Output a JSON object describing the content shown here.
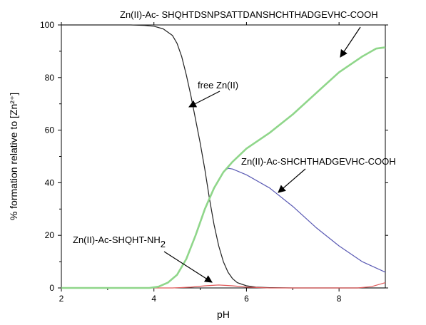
{
  "chart_data": {
    "type": "line",
    "xlabel": "pH",
    "ylabel": "% formation relative to [Zn²⁺]",
    "xlim": [
      2,
      9
    ],
    "ylim": [
      0,
      100
    ],
    "xticks": [
      "2",
      "4",
      "6",
      "8"
    ],
    "yticks": [
      "0",
      "20",
      "40",
      "60",
      "80",
      "100"
    ],
    "grid": false,
    "series": [
      {
        "name": "free Zn(II)",
        "color": "#222222",
        "points": [
          [
            2.0,
            100
          ],
          [
            3.5,
            100
          ],
          [
            3.8,
            99.8
          ],
          [
            4.0,
            99.5
          ],
          [
            4.2,
            98.5
          ],
          [
            4.4,
            96
          ],
          [
            4.5,
            93
          ],
          [
            4.6,
            88
          ],
          [
            4.7,
            81
          ],
          [
            4.8,
            73
          ],
          [
            4.9,
            64
          ],
          [
            5.0,
            55
          ],
          [
            5.1,
            45
          ],
          [
            5.2,
            34
          ],
          [
            5.3,
            24
          ],
          [
            5.4,
            16
          ],
          [
            5.5,
            10
          ],
          [
            5.6,
            6
          ],
          [
            5.7,
            3.5
          ],
          [
            5.8,
            2
          ],
          [
            6.0,
            0.8
          ],
          [
            6.2,
            0.3
          ],
          [
            6.5,
            0.1
          ],
          [
            7.0,
            0
          ],
          [
            9.0,
            0
          ]
        ]
      },
      {
        "name": "Zn(II)-Ac- SHQHTDSNPSATTDANSHCHTHADGEVHC-COOH",
        "color": "#8fd68a",
        "points": [
          [
            2.0,
            0
          ],
          [
            3.9,
            0
          ],
          [
            4.1,
            0.5
          ],
          [
            4.3,
            2
          ],
          [
            4.5,
            5
          ],
          [
            4.7,
            11
          ],
          [
            4.9,
            20
          ],
          [
            5.1,
            30
          ],
          [
            5.3,
            38
          ],
          [
            5.5,
            44
          ],
          [
            5.7,
            48
          ],
          [
            6.0,
            53
          ],
          [
            6.5,
            59
          ],
          [
            7.0,
            66
          ],
          [
            7.5,
            74
          ],
          [
            8.0,
            82
          ],
          [
            8.5,
            88
          ],
          [
            8.8,
            91
          ],
          [
            9.0,
            91.5
          ]
        ]
      },
      {
        "name": "Zn(II)-Ac-SHCHTHADGEVHC-COOH",
        "color": "#5a5ab4",
        "points": [
          [
            2.0,
            0
          ],
          [
            3.9,
            0
          ],
          [
            4.1,
            0.5
          ],
          [
            4.3,
            2
          ],
          [
            4.5,
            5
          ],
          [
            4.7,
            11
          ],
          [
            4.9,
            20
          ],
          [
            5.1,
            30
          ],
          [
            5.3,
            38
          ],
          [
            5.5,
            44
          ],
          [
            5.6,
            45.5
          ],
          [
            5.7,
            45.2
          ],
          [
            6.0,
            43
          ],
          [
            6.5,
            38
          ],
          [
            7.0,
            31
          ],
          [
            7.5,
            23
          ],
          [
            8.0,
            16
          ],
          [
            8.5,
            10
          ],
          [
            9.0,
            6
          ]
        ]
      },
      {
        "name": "Zn(II)-Ac-SHQHT-NH₂",
        "color": "#e05a5a",
        "points": [
          [
            2.0,
            0
          ],
          [
            4.4,
            0
          ],
          [
            4.8,
            0.3
          ],
          [
            5.1,
            0.8
          ],
          [
            5.4,
            1.1
          ],
          [
            5.7,
            0.8
          ],
          [
            6.0,
            0.3
          ],
          [
            6.5,
            0
          ],
          [
            8.4,
            0
          ],
          [
            8.7,
            0.5
          ],
          [
            9.0,
            2
          ]
        ]
      }
    ],
    "annotations": [
      {
        "text": "Zn(II)-Ac- SHQHTDSNPSATTDANSHCHTHADGEVHC-COOH"
      },
      {
        "text": "free Zn(II)"
      },
      {
        "text": "Zn(II)-Ac-SHCHTHADGEVHC-COOH"
      },
      {
        "text": "Zn(II)-Ac-SHQHT-NH",
        "subscript": "2"
      }
    ]
  }
}
